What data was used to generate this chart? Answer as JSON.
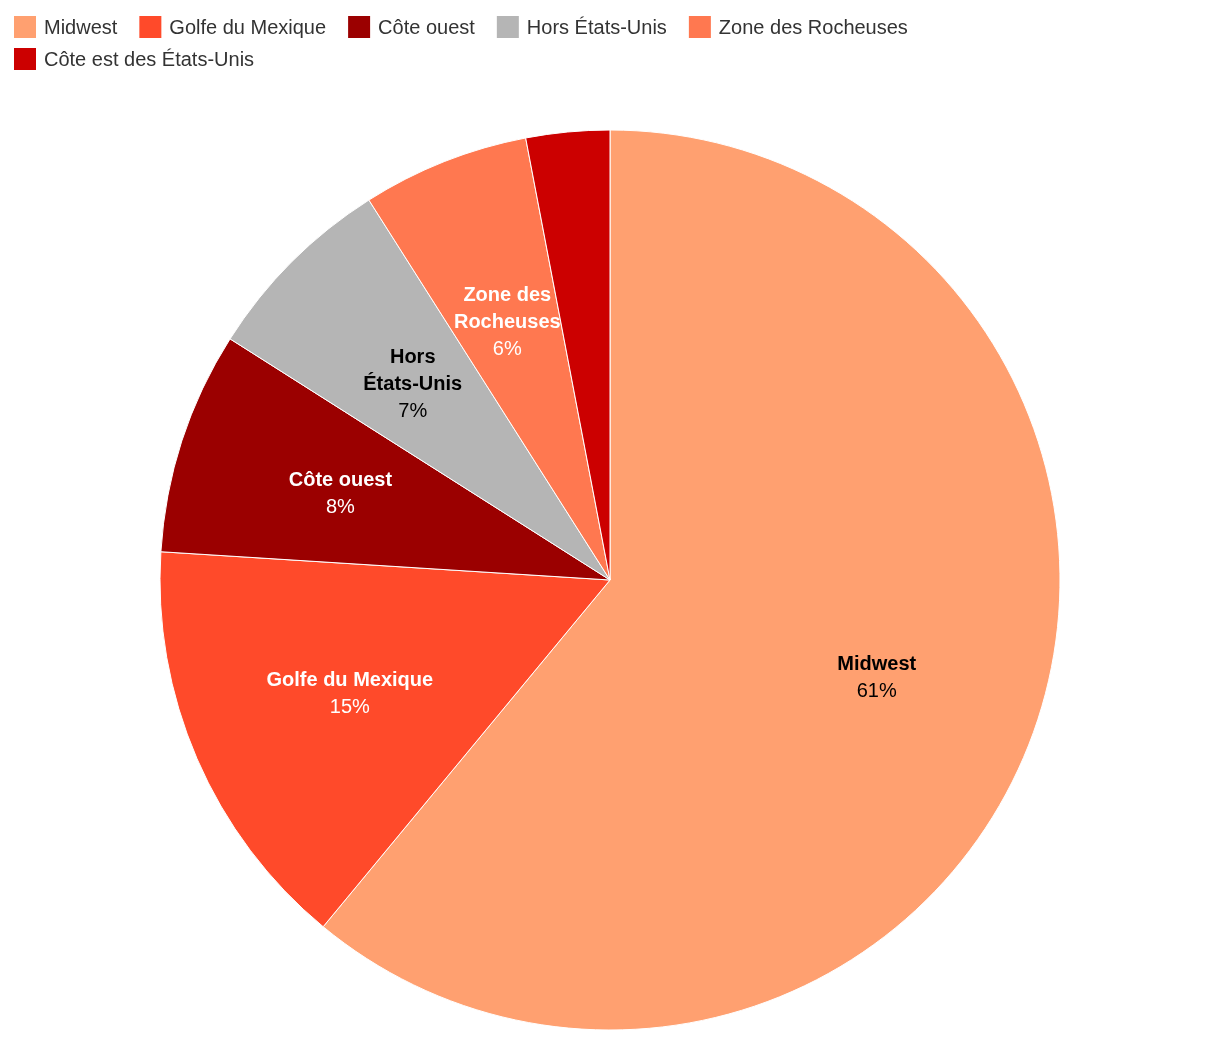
{
  "chart_data": {
    "type": "pie",
    "categories": [
      "Midwest",
      "Golfe du Mexique",
      "Côte ouest",
      "Hors États-Unis",
      "Zone des Rocheuses",
      "Côte est des États-Unis"
    ],
    "values": [
      61,
      15,
      8,
      7,
      6,
      3
    ],
    "colors": [
      "#ffa070",
      "#ff4a2a",
      "#9b0000",
      "#b5b5b5",
      "#ff7850",
      "#cc0000"
    ],
    "value_labels": [
      "61%",
      "15%",
      "8%",
      "7%",
      "6%",
      null
    ],
    "legend": "top left"
  }
}
